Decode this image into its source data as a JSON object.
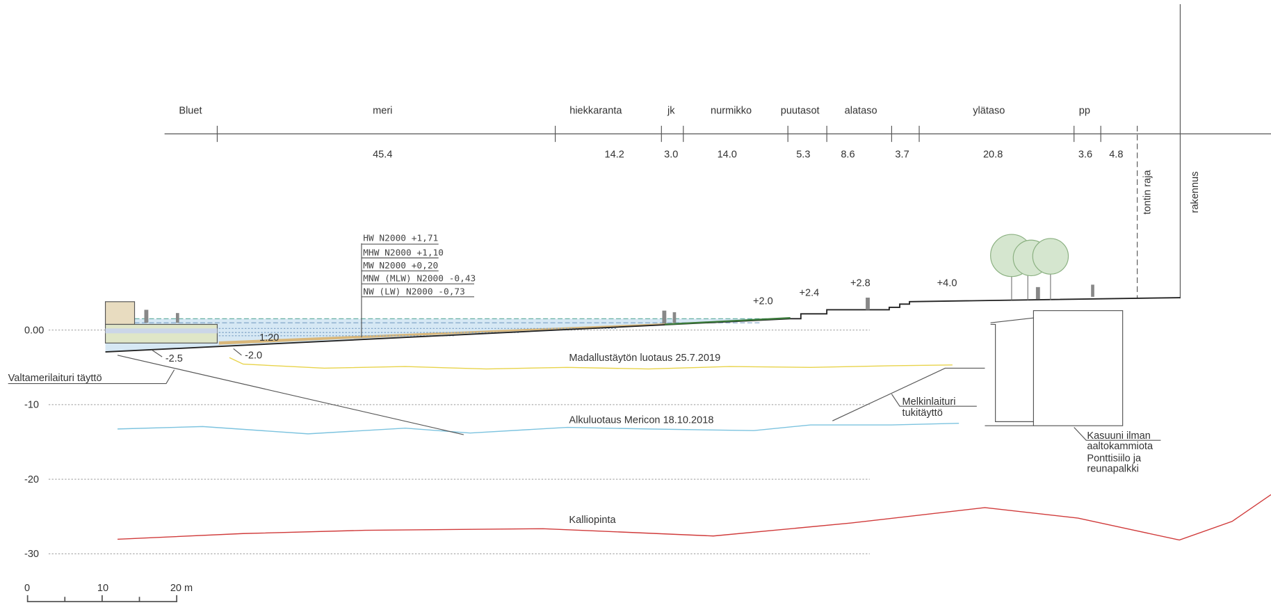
{
  "zones": [
    "Bluet",
    "meri",
    "hiekkaranta",
    "jk",
    "nurmikko",
    "puutasot",
    "alataso",
    "ylätaso",
    "pp"
  ],
  "dimensions": [
    "45.4",
    "14.2",
    "3.0",
    "14.0",
    "5.3",
    "8.6",
    "3.7",
    "20.8",
    "3.6",
    "4.8"
  ],
  "boundaries": [
    "tontin raja",
    "rakennus"
  ],
  "water_levels": [
    "HW N2000 +1,71",
    "MHW N2000 +1,10",
    "MW N2000 +0,20",
    "MNW (MLW) N2000 -0,43",
    "NW (LW) N2000 -0,73"
  ],
  "elevations": [
    "+2.0",
    "+2.4",
    "+2.8",
    "+4.0"
  ],
  "depth_labels": [
    "0.00",
    "-10",
    "-20",
    "-30"
  ],
  "slope": "1:20",
  "depths": [
    "-2.5",
    "-2.0"
  ],
  "surveys": [
    "Madallustäytön luotaus 25.7.2019",
    "Alkuluotaus Mericon 18.10.2018",
    "Kalliopinta"
  ],
  "annotations": {
    "valtamerilaituri": "Valtamerilaituri täyttö",
    "melkinlaituri": [
      "Melkinlaituri",
      "tukitäyttö"
    ],
    "kasuuni": [
      "Kasuuni ilman",
      "aaltokammiota"
    ],
    "ponttisiilo": [
      "Ponttisiilo ja",
      "reunapalkki"
    ]
  },
  "scale_bar": [
    "0",
    "10",
    "20 m"
  ]
}
